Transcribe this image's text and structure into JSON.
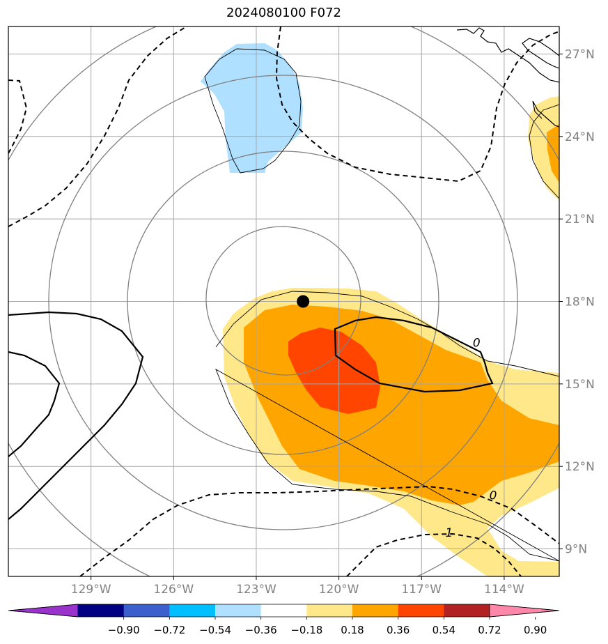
{
  "title": "2024080100 F072",
  "colors": {
    "land_outline": "#000000",
    "gridline": "#a6a6a6",
    "ring": "#808080",
    "tick_label": "#808080",
    "contour": "#000000",
    "center_marker": "#000000"
  },
  "map": {
    "lon_range": [
      -132.0,
      -112.0
    ],
    "lat_range": [
      8.0,
      28.0
    ],
    "lon_ticks": [
      {
        "value": -129,
        "label": "129°W"
      },
      {
        "value": -126,
        "label": "126°W"
      },
      {
        "value": -123,
        "label": "123°W"
      },
      {
        "value": -120,
        "label": "120°W"
      },
      {
        "value": -117,
        "label": "117°W"
      },
      {
        "value": -114,
        "label": "114°W"
      }
    ],
    "lat_ticks": [
      {
        "value": 9,
        "label": "9°N"
      },
      {
        "value": 12,
        "label": "12°N"
      },
      {
        "value": 15,
        "label": "15°N"
      },
      {
        "value": 18,
        "label": "18°N"
      },
      {
        "value": 21,
        "label": "21°N"
      },
      {
        "value": 24,
        "label": "24°N"
      },
      {
        "value": 27,
        "label": "27°N"
      }
    ],
    "center": {
      "lon": -121.3,
      "lat": 18.0
    },
    "contour_labels": [
      {
        "text": "0",
        "lon": -115.0,
        "lat": 16.5
      },
      {
        "text": "0",
        "lon": -114.4,
        "lat": 10.95
      },
      {
        "text": "1",
        "lon": -116.0,
        "lat": 9.6
      }
    ]
  },
  "colorbar": {
    "colors": [
      "#9933cc",
      "#000080",
      "#3b5fcd",
      "#00bfff",
      "#b0e0ff",
      "#ffffff",
      "#ffe88a",
      "#ffa500",
      "#ff4500",
      "#b22222",
      "#ff88aa"
    ],
    "tick_labels": [
      "−0.90",
      "−0.72",
      "−0.54",
      "−0.36",
      "−0.18",
      "0.18",
      "0.36",
      "0.54",
      "0.72",
      "0.90"
    ]
  }
}
